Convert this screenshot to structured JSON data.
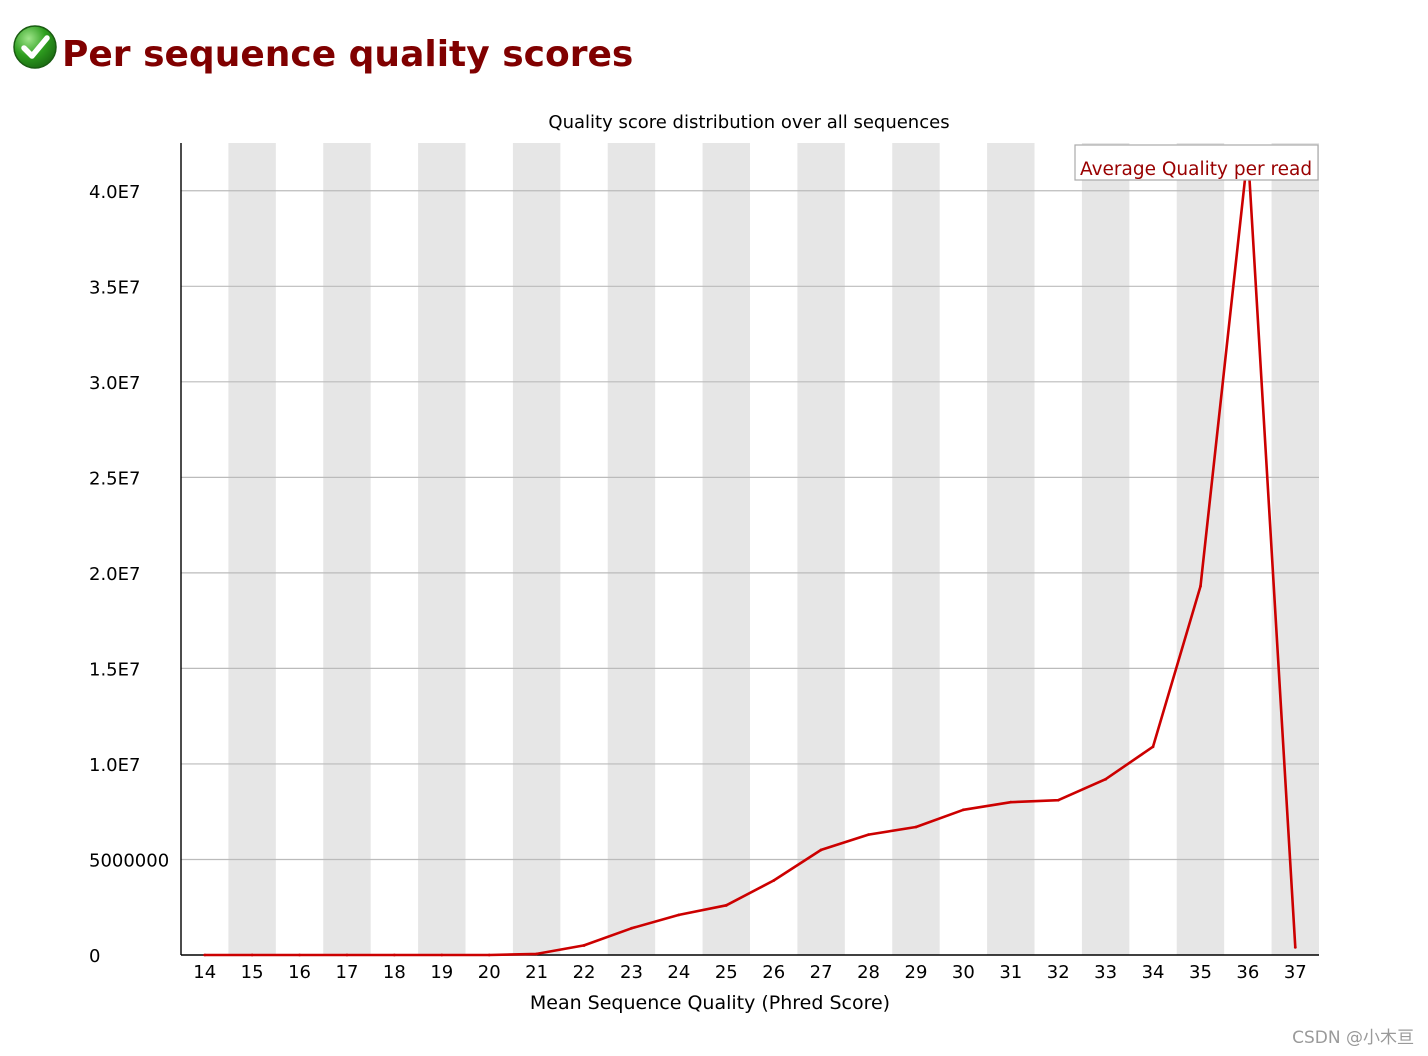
{
  "header": {
    "title": "Per sequence quality scores",
    "status_icon": "check-circle-icon",
    "status_color": "#2e9e1f"
  },
  "chart_data": {
    "type": "line",
    "title": "Quality score distribution over all sequences",
    "xlabel": "Mean Sequence Quality (Phred Score)",
    "ylabel": "",
    "x": [
      14,
      15,
      16,
      17,
      18,
      19,
      20,
      21,
      22,
      23,
      24,
      25,
      26,
      27,
      28,
      29,
      30,
      31,
      32,
      33,
      34,
      35,
      36,
      37
    ],
    "ylim": [
      0,
      42500000
    ],
    "yticks": [
      0,
      5000000,
      10000000,
      15000000,
      20000000,
      25000000,
      30000000,
      35000000,
      40000000
    ],
    "ytick_labels": [
      "0",
      "5000000",
      "1.0E7",
      "1.5E7",
      "2.0E7",
      "2.5E7",
      "3.0E7",
      "3.5E7",
      "4.0E7"
    ],
    "series": [
      {
        "name": "Average Quality per read",
        "color": "#cc0000",
        "values": [
          0,
          0,
          0,
          0,
          0,
          0,
          0,
          60000,
          500000,
          1400000,
          2100000,
          2600000,
          3900000,
          5500000,
          6300000,
          6700000,
          7600000,
          8000000,
          8100000,
          9200000,
          10900000,
          19300000,
          42000000,
          400000
        ]
      }
    ],
    "legend": "top-right",
    "grid": true,
    "band_color": "#e6e6e6",
    "grid_color": "#bbbbbb"
  },
  "watermark": "CSDN @小木亘"
}
